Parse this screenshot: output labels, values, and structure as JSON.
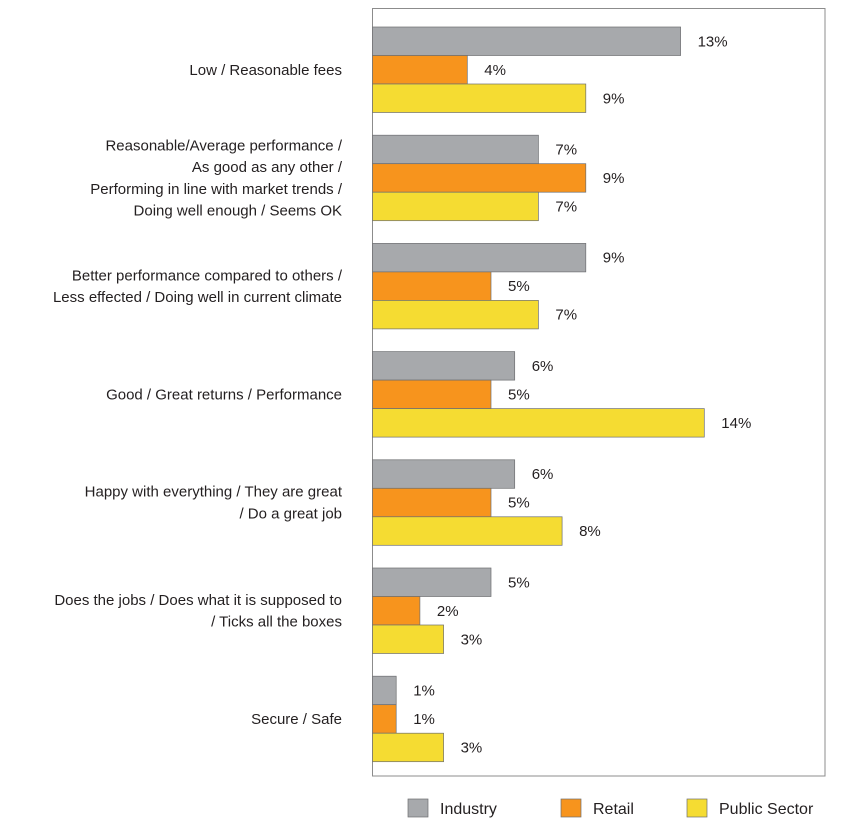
{
  "chart_data": {
    "type": "bar",
    "orientation": "horizontal",
    "categories": [
      [
        "Low / Reasonable fees"
      ],
      [
        "Reasonable/Average performance /",
        "As good as any other /",
        "Performing in line with market trends /",
        "Doing well enough / Seems OK"
      ],
      [
        "Better performance compared to others /",
        "Less effected / Doing well in current climate"
      ],
      [
        "Good / Great returns / Performance"
      ],
      [
        "Happy with everything / They are great",
        "/ Do a great job"
      ],
      [
        "Does the jobs / Does what it is supposed to",
        "/ Ticks all the boxes"
      ],
      [
        "Secure / Safe"
      ]
    ],
    "series": [
      {
        "name": "Industry",
        "color": "#a7a9ac",
        "values": [
          13,
          7,
          9,
          6,
          6,
          5,
          1
        ]
      },
      {
        "name": "Retail",
        "color": "#f7941d",
        "values": [
          4,
          9,
          5,
          5,
          5,
          2,
          1
        ]
      },
      {
        "name": "Public Sector",
        "color": "#f5dc32",
        "values": [
          9,
          7,
          7,
          14,
          8,
          3,
          3
        ]
      }
    ],
    "value_suffix": "%",
    "xlim": [
      0,
      20
    ],
    "grid": false,
    "legend_position": "bottom",
    "title": "",
    "xlabel": "",
    "ylabel": ""
  }
}
